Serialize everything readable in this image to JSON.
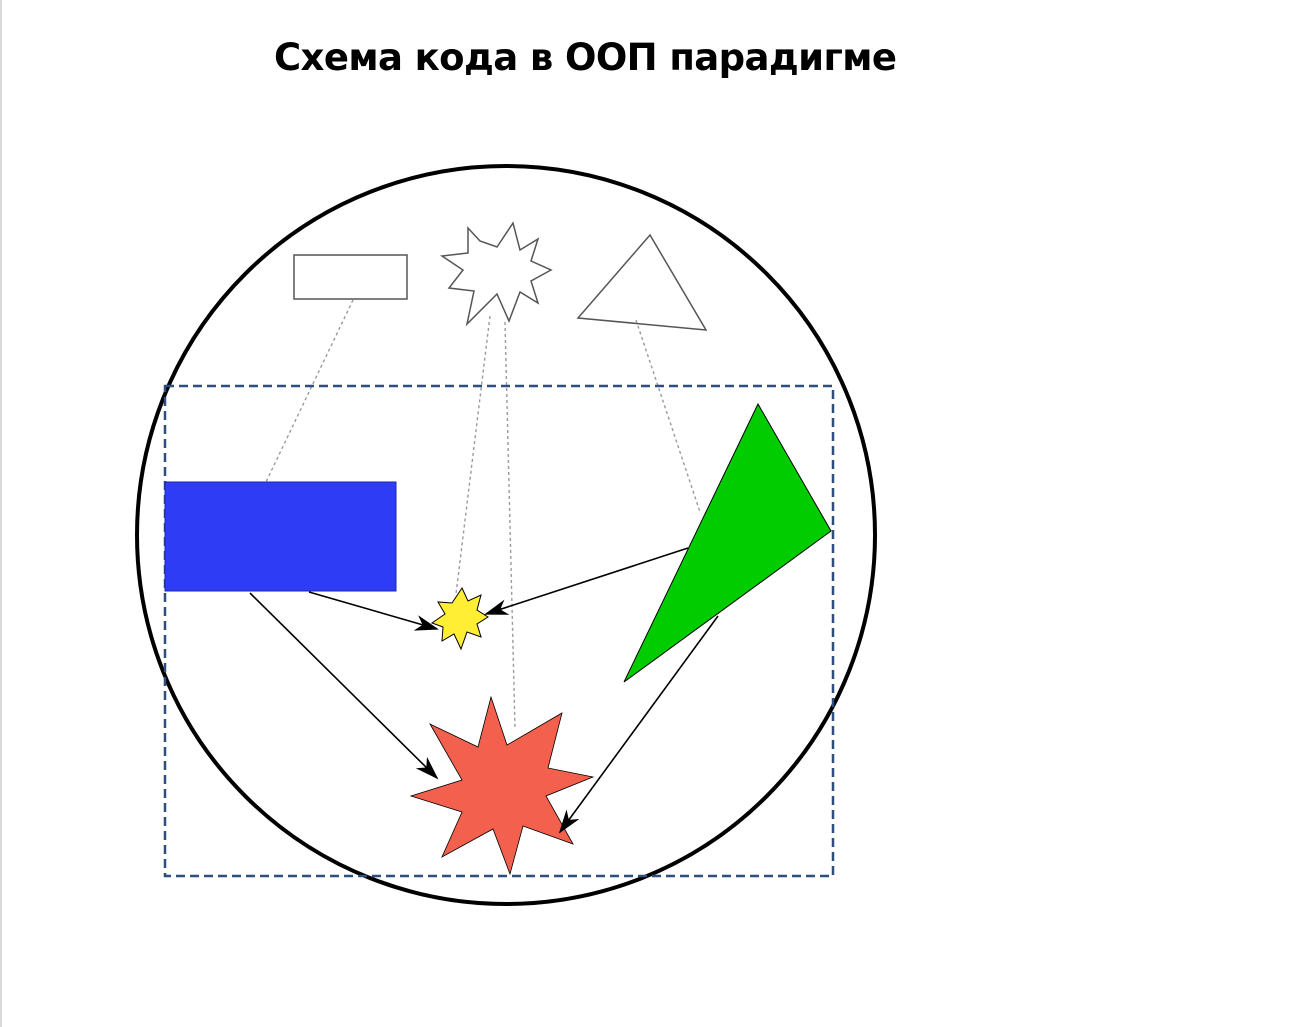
{
  "title": "Схема кода в ООП парадигме",
  "colors": {
    "outline": "#000000",
    "template_stroke": "#555555",
    "dotted_link": "#9a9a9a",
    "boundary": "#2e4f7e",
    "rectangle_fill": "#2e3cf6",
    "triangle_fill": "#00cc00",
    "small_star_fill": "#ffee33",
    "big_star_fill": "#f4604e",
    "background": "#ffffff"
  },
  "icons": {
    "template_rectangle": "rectangle-outline",
    "template_star": "star-outline",
    "template_triangle": "triangle-outline",
    "instance_rectangle": "filled-rectangle",
    "instance_small_star": "filled-star",
    "instance_big_star": "filled-star",
    "instance_triangle": "filled-triangle"
  }
}
